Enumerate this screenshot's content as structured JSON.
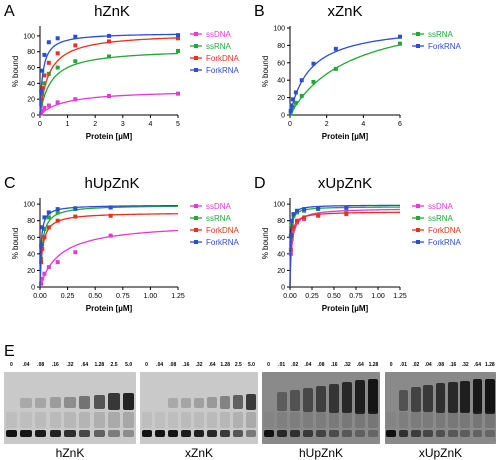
{
  "panel_letters": [
    "A",
    "B",
    "C",
    "D",
    "E"
  ],
  "chart_data": [
    {
      "type": "scatter",
      "panel": "A",
      "title": "hZnK",
      "xlabel": "Protein [µM]",
      "ylabel": "% bound",
      "xlim": [
        0,
        5
      ],
      "ylim": [
        0,
        110
      ],
      "xticks": [
        "0",
        "1",
        "2",
        "3",
        "4",
        "5"
      ],
      "yticks": [
        "0",
        "20",
        "40",
        "60",
        "80",
        "100"
      ],
      "legend": "right",
      "series": [
        {
          "name": "ssDNA",
          "color": "#e23ad6",
          "x": [
            0.04,
            0.08,
            0.16,
            0.32,
            0.64,
            1.28,
            2.5,
            5.0
          ],
          "y": [
            2,
            5,
            9,
            12,
            16,
            20,
            24,
            27
          ],
          "bmax": 32,
          "kd": 0.9
        },
        {
          "name": "ssRNA",
          "color": "#22a83a",
          "x": [
            0.04,
            0.08,
            0.16,
            0.32,
            0.64,
            1.28,
            2.5,
            5.0
          ],
          "y": [
            14,
            26,
            40,
            52,
            60,
            68,
            74,
            81
          ],
          "bmax": 84,
          "kd": 0.4
        },
        {
          "name": "ForkDNA",
          "color": "#e8321e",
          "x": [
            0.04,
            0.08,
            0.16,
            0.32,
            0.64,
            1.28,
            2.5,
            5.0
          ],
          "y": [
            20,
            34,
            50,
            66,
            78,
            88,
            93,
            97
          ],
          "bmax": 104,
          "kd": 0.33
        },
        {
          "name": "ForkRNA",
          "color": "#2a4fd6",
          "x": [
            0.04,
            0.08,
            0.16,
            0.32,
            0.64,
            1.28,
            2.5,
            5.0
          ],
          "y": [
            30,
            56,
            76,
            92,
            97,
            99,
            100,
            101
          ],
          "bmax": 104,
          "kd": 0.1
        }
      ]
    },
    {
      "type": "scatter",
      "panel": "B",
      "title": "xZnK",
      "xlabel": "Protein [µM]",
      "ylabel": "% bound",
      "xlim": [
        0,
        6
      ],
      "ylim": [
        0,
        100
      ],
      "xticks": [
        "0",
        "2",
        "4",
        "6"
      ],
      "yticks": [
        "0",
        "20",
        "40",
        "60",
        "80",
        "100"
      ],
      "legend": "right",
      "series": [
        {
          "name": "ssRNA",
          "color": "#22a83a",
          "x": [
            0.04,
            0.08,
            0.16,
            0.32,
            0.64,
            1.28,
            2.5,
            6.0
          ],
          "y": [
            2,
            6,
            9,
            14,
            22,
            38,
            53,
            82
          ],
          "bmax": 125,
          "kd": 3.3
        },
        {
          "name": "ForkRNA",
          "color": "#2a4fd6",
          "x": [
            0.04,
            0.08,
            0.16,
            0.32,
            0.64,
            1.28,
            2.5,
            6.0
          ],
          "y": [
            5,
            11,
            18,
            26,
            40,
            59,
            76,
            90
          ],
          "bmax": 105,
          "kd": 1.1
        }
      ]
    },
    {
      "type": "scatter",
      "panel": "C",
      "title": "hUpZnK",
      "xlabel": "Protein [µM]",
      "ylabel": "% bound",
      "xlim": [
        0,
        1.25
      ],
      "ylim": [
        0,
        105
      ],
      "xticks": [
        "0.00",
        "0.25",
        "0.50",
        "0.75",
        "1.00",
        "1.25"
      ],
      "yticks": [
        "0",
        "20",
        "40",
        "60",
        "80",
        "100"
      ],
      "legend": "right",
      "series": [
        {
          "name": "ssDNA",
          "color": "#e23ad6",
          "x": [
            0.01,
            0.02,
            0.04,
            0.08,
            0.16,
            0.32,
            0.64,
            1.28
          ],
          "y": [
            4,
            10,
            16,
            24,
            30,
            42,
            62,
            69
          ],
          "bmax": 78,
          "kd": 0.18
        },
        {
          "name": "ssRNA",
          "color": "#22a83a",
          "x": [
            0.01,
            0.02,
            0.04,
            0.08,
            0.16,
            0.32,
            0.64,
            1.28
          ],
          "y": [
            34,
            52,
            70,
            84,
            90,
            94,
            96,
            97
          ],
          "bmax": 99,
          "kd": 0.02
        },
        {
          "name": "ForkDNA",
          "color": "#e8321e",
          "x": [
            0.01,
            0.02,
            0.04,
            0.08,
            0.16,
            0.32,
            0.64,
            1.28
          ],
          "y": [
            30,
            46,
            60,
            72,
            80,
            85,
            86,
            88
          ],
          "bmax": 90,
          "kd": 0.022
        },
        {
          "name": "ForkRNA",
          "color": "#2a4fd6",
          "x": [
            0.01,
            0.02,
            0.04,
            0.08,
            0.16,
            0.32,
            0.64,
            1.28
          ],
          "y": [
            50,
            72,
            84,
            90,
            94,
            95,
            96,
            98
          ],
          "bmax": 99,
          "kd": 0.01
        }
      ]
    },
    {
      "type": "scatter",
      "panel": "D",
      "title": "xUpZnK",
      "xlabel": "Protein [µM]",
      "ylabel": "% bound",
      "xlim": [
        0,
        1.25
      ],
      "ylim": [
        0,
        105
      ],
      "xticks": [
        "0.00",
        "0.25",
        "0.50",
        "0.75",
        "1.00",
        "1.25"
      ],
      "yticks": [
        "0",
        "20",
        "40",
        "60",
        "80",
        "100"
      ],
      "legend": "right",
      "series": [
        {
          "name": "ssDNA",
          "color": "#e23ad6",
          "x": [
            0.01,
            0.02,
            0.04,
            0.08,
            0.16,
            0.32,
            0.64,
            1.28
          ],
          "y": [
            40,
            58,
            70,
            78,
            82,
            87,
            90,
            92
          ],
          "bmax": 95,
          "kd": 0.02
        },
        {
          "name": "ssRNA",
          "color": "#22a83a",
          "x": [
            0.01,
            0.02,
            0.04,
            0.08,
            0.16,
            0.32,
            0.64,
            1.28
          ],
          "y": [
            60,
            76,
            86,
            90,
            92,
            94,
            95,
            96
          ],
          "bmax": 97,
          "kd": 0.007
        },
        {
          "name": "ForkDNA",
          "color": "#e8321e",
          "x": [
            0.01,
            0.02,
            0.04,
            0.08,
            0.16,
            0.32,
            0.64,
            1.28
          ],
          "y": [
            45,
            62,
            72,
            80,
            84,
            86,
            88,
            90
          ],
          "bmax": 91,
          "kd": 0.012
        },
        {
          "name": "ForkRNA",
          "color": "#2a4fd6",
          "x": [
            0.01,
            0.02,
            0.04,
            0.08,
            0.16,
            0.32,
            0.64,
            1.28
          ],
          "y": [
            62,
            80,
            88,
            92,
            94,
            95,
            96,
            98
          ],
          "bmax": 99,
          "kd": 0.006
        }
      ]
    }
  ],
  "gels": [
    {
      "label": "hZnK",
      "tone": "light",
      "concentrations": [
        "0",
        ".04",
        ".08",
        ".16",
        ".32",
        ".64",
        "1.28",
        "2.5",
        "5.0"
      ],
      "bound_fraction": [
        0,
        0.02,
        0.05,
        0.1,
        0.2,
        0.38,
        0.58,
        0.78,
        0.9
      ]
    },
    {
      "label": "xZnK",
      "tone": "light",
      "concentrations": [
        "0",
        ".04",
        ".08",
        ".16",
        ".32",
        ".64",
        "1.28",
        "2.5",
        "5.0"
      ],
      "bound_fraction": [
        0,
        0.0,
        0.02,
        0.05,
        0.08,
        0.14,
        0.28,
        0.5,
        0.75
      ]
    },
    {
      "label": "hUpZnK",
      "tone": "dark",
      "concentrations": [
        "0",
        ".01",
        ".02",
        ".04",
        ".08",
        ".16",
        ".32",
        ".64",
        "1.28"
      ],
      "bound_fraction": [
        0,
        0.25,
        0.35,
        0.45,
        0.55,
        0.65,
        0.78,
        0.88,
        0.95
      ]
    },
    {
      "label": "xUpZnK",
      "tone": "dark",
      "concentrations": [
        "0",
        ".01",
        ".02",
        ".04",
        ".08",
        ".16",
        ".32",
        ".64",
        "1.28"
      ],
      "bound_fraction": [
        0,
        0.35,
        0.5,
        0.6,
        0.7,
        0.78,
        0.86,
        0.92,
        0.96
      ]
    }
  ]
}
